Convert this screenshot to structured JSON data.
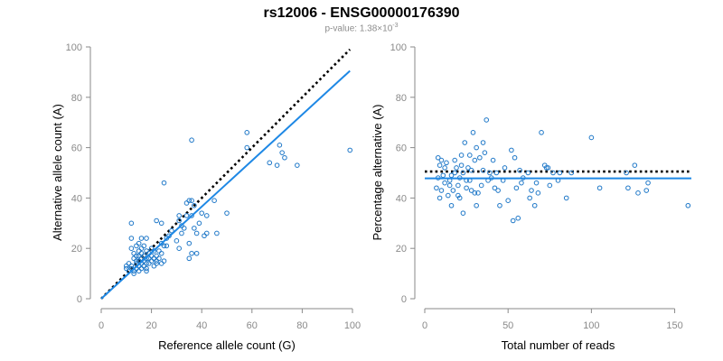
{
  "title": "rs12006 - ENSG00000176390",
  "subtitle": {
    "prefix": "p-value: 1.38×10",
    "exponent": "-3"
  },
  "colors": {
    "points": "#1f78c8",
    "fit": "#1e88e5",
    "reference": "#000000",
    "axis": "#8a8a8a"
  },
  "chart_data": [
    {
      "type": "scatter",
      "xlabel": "Reference allele count (G)",
      "ylabel": "Alternative allele count (A)",
      "xlim": [
        0,
        100
      ],
      "ylim": [
        0,
        100
      ],
      "xticks": [
        0,
        20,
        40,
        60,
        80,
        100
      ],
      "yticks": [
        0,
        20,
        40,
        60,
        80,
        100
      ],
      "reference_line": {
        "style": "dotted",
        "x": [
          0,
          99
        ],
        "y": [
          0,
          99
        ]
      },
      "fit_line": {
        "style": "solid",
        "x": [
          0,
          99
        ],
        "y": [
          0,
          90.5
        ]
      },
      "points": [
        [
          10,
          12
        ],
        [
          10,
          13
        ],
        [
          11,
          11
        ],
        [
          11,
          14
        ],
        [
          12,
          12
        ],
        [
          12,
          13
        ],
        [
          12,
          20
        ],
        [
          12,
          24
        ],
        [
          12,
          30
        ],
        [
          13,
          10
        ],
        [
          13,
          11
        ],
        [
          13,
          16
        ],
        [
          13,
          18
        ],
        [
          14,
          12
        ],
        [
          14,
          14
        ],
        [
          14,
          15
        ],
        [
          14,
          17
        ],
        [
          14,
          21
        ],
        [
          15,
          11
        ],
        [
          15,
          13
        ],
        [
          15,
          15
        ],
        [
          15,
          17
        ],
        [
          15,
          19
        ],
        [
          15,
          22
        ],
        [
          16,
          12
        ],
        [
          16,
          14
        ],
        [
          16,
          16
        ],
        [
          16,
          18
        ],
        [
          16,
          20
        ],
        [
          16,
          24
        ],
        [
          17,
          13
        ],
        [
          17,
          15
        ],
        [
          17,
          17
        ],
        [
          17,
          21
        ],
        [
          18,
          11
        ],
        [
          18,
          12
        ],
        [
          18,
          14
        ],
        [
          18,
          16
        ],
        [
          18,
          19
        ],
        [
          18,
          24
        ],
        [
          19,
          14
        ],
        [
          19,
          16
        ],
        [
          19,
          18
        ],
        [
          20,
          15
        ],
        [
          20,
          17
        ],
        [
          20,
          20
        ],
        [
          21,
          13
        ],
        [
          21,
          16
        ],
        [
          21,
          19
        ],
        [
          22,
          14
        ],
        [
          22,
          15
        ],
        [
          22,
          17
        ],
        [
          22,
          31
        ],
        [
          23,
          16
        ],
        [
          23,
          19
        ],
        [
          24,
          14
        ],
        [
          24,
          18
        ],
        [
          24,
          22
        ],
        [
          24,
          30
        ],
        [
          25,
          15
        ],
        [
          25,
          21
        ],
        [
          25,
          46
        ],
        [
          26,
          21
        ],
        [
          26,
          24
        ],
        [
          27,
          25
        ],
        [
          28,
          27
        ],
        [
          30,
          23
        ],
        [
          31,
          20
        ],
        [
          31,
          31
        ],
        [
          31,
          33
        ],
        [
          32,
          26
        ],
        [
          32,
          29
        ],
        [
          33,
          28
        ],
        [
          34,
          33
        ],
        [
          34,
          38
        ],
        [
          35,
          16
        ],
        [
          35,
          22
        ],
        [
          35,
          39
        ],
        [
          36,
          18
        ],
        [
          36,
          33
        ],
        [
          36,
          39
        ],
        [
          36,
          63
        ],
        [
          37,
          28
        ],
        [
          37,
          37
        ],
        [
          38,
          18
        ],
        [
          38,
          26
        ],
        [
          39,
          30
        ],
        [
          40,
          34
        ],
        [
          41,
          25
        ],
        [
          42,
          26
        ],
        [
          42,
          33
        ],
        [
          45,
          39
        ],
        [
          46,
          26
        ],
        [
          50,
          34
        ],
        [
          58,
          60
        ],
        [
          58,
          66
        ],
        [
          67,
          54
        ],
        [
          70,
          53
        ],
        [
          71,
          61
        ],
        [
          72,
          58
        ],
        [
          73,
          56
        ],
        [
          78,
          53
        ],
        [
          99,
          59
        ]
      ]
    },
    {
      "type": "scatter",
      "xlabel": "Total number of reads",
      "ylabel": "Percentage alternative (A)",
      "xlim": [
        0,
        160
      ],
      "ylim": [
        0,
        100
      ],
      "xticks": [
        0,
        50,
        100,
        150
      ],
      "yticks": [
        0,
        20,
        40,
        60,
        80,
        100
      ],
      "reference_line": {
        "style": "dotted",
        "x": [
          0,
          160
        ],
        "y": [
          50.5,
          50.5
        ]
      },
      "fit_line": {
        "style": "solid",
        "x": [
          0,
          160
        ],
        "y": [
          47.8,
          47.8
        ]
      },
      "points": [
        [
          7,
          44
        ],
        [
          8,
          48
        ],
        [
          8,
          56
        ],
        [
          9,
          53
        ],
        [
          9,
          40
        ],
        [
          10,
          55
        ],
        [
          10,
          43
        ],
        [
          11,
          49
        ],
        [
          12,
          52
        ],
        [
          12,
          46
        ],
        [
          13,
          54
        ],
        [
          14,
          41
        ],
        [
          15,
          47
        ],
        [
          15,
          45
        ],
        [
          16,
          49
        ],
        [
          16,
          37
        ],
        [
          17,
          43
        ],
        [
          18,
          50
        ],
        [
          18,
          55
        ],
        [
          19,
          52
        ],
        [
          20,
          45
        ],
        [
          20,
          41
        ],
        [
          21,
          40
        ],
        [
          21,
          48
        ],
        [
          22,
          53
        ],
        [
          22,
          57
        ],
        [
          23,
          34
        ],
        [
          23,
          50
        ],
        [
          24,
          62
        ],
        [
          25,
          44
        ],
        [
          25,
          47
        ],
        [
          26,
          52
        ],
        [
          27,
          47
        ],
        [
          27,
          57
        ],
        [
          28,
          43
        ],
        [
          28,
          51
        ],
        [
          29,
          66
        ],
        [
          30,
          55
        ],
        [
          30,
          42
        ],
        [
          31,
          60
        ],
        [
          31,
          37
        ],
        [
          32,
          42
        ],
        [
          33,
          56
        ],
        [
          34,
          45
        ],
        [
          35,
          62
        ],
        [
          35,
          51
        ],
        [
          36,
          58
        ],
        [
          37,
          71
        ],
        [
          38,
          47
        ],
        [
          39,
          50
        ],
        [
          40,
          48
        ],
        [
          41,
          55
        ],
        [
          42,
          44
        ],
        [
          43,
          50
        ],
        [
          44,
          43
        ],
        [
          45,
          37
        ],
        [
          47,
          47
        ],
        [
          48,
          52
        ],
        [
          50,
          39
        ],
        [
          52,
          59
        ],
        [
          53,
          31
        ],
        [
          54,
          56
        ],
        [
          55,
          44
        ],
        [
          56,
          32
        ],
        [
          57,
          51
        ],
        [
          58,
          46
        ],
        [
          59,
          48
        ],
        [
          62,
          50
        ],
        [
          63,
          40
        ],
        [
          64,
          43
        ],
        [
          66,
          37
        ],
        [
          67,
          46
        ],
        [
          68,
          42
        ],
        [
          70,
          66
        ],
        [
          72,
          53
        ],
        [
          73,
          52
        ],
        [
          74,
          52
        ],
        [
          75,
          45
        ],
        [
          77,
          50
        ],
        [
          80,
          47
        ],
        [
          81,
          50
        ],
        [
          85,
          40
        ],
        [
          88,
          50
        ],
        [
          100,
          64
        ],
        [
          105,
          44
        ],
        [
          121,
          50
        ],
        [
          122,
          44
        ],
        [
          126,
          53
        ],
        [
          128,
          42
        ],
        [
          133,
          43
        ],
        [
          134,
          46
        ],
        [
          158,
          37
        ]
      ]
    }
  ]
}
